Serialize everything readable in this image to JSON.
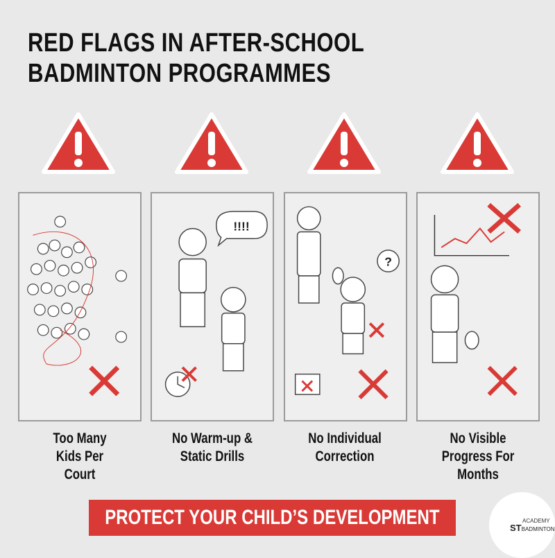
{
  "title": {
    "line1": "RED FLAGS IN AFTER-SCHOOL",
    "line2": "BADMINTON PROGRAMMES"
  },
  "colors": {
    "accent": "#d93a36",
    "background": "#e9e9e9",
    "text": "#111111"
  },
  "panels": [
    {
      "icon": "warning-triangle-icon",
      "caption": "Too Many Kids Per Court",
      "illustration": "crowded-court"
    },
    {
      "icon": "warning-triangle-icon",
      "caption": "No Warm-up & Static Drills",
      "illustration": "shouting-coach",
      "bubble": "!!!!"
    },
    {
      "icon": "warning-triangle-icon",
      "caption": "No Individual Correction",
      "illustration": "ignored-child",
      "bubble": "?"
    },
    {
      "icon": "warning-triangle-icon",
      "caption": "No Visible Progress For Months",
      "illustration": "flat-progress-chart"
    }
  ],
  "banner": {
    "text": "PROTECT YOUR CHILD’S DEVELOPMENT"
  },
  "logo": {
    "line1": "ACADEMY",
    "line2": "ST",
    "line3": "BADMINTON"
  }
}
